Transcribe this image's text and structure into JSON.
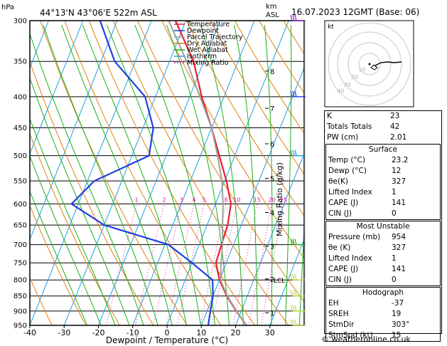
{
  "header": {
    "hpa_label": "hPa",
    "location": "44°13'N  43°06'E  522m  ASL",
    "km_label": "km",
    "asl_label": "ASL",
    "datetime": "16.07.2023  12GMT  (Base: 06)"
  },
  "legend": [
    {
      "label": "Temperature",
      "color": "#e8202a",
      "dash": ""
    },
    {
      "label": "Dewpoint",
      "color": "#2040e0",
      "dash": ""
    },
    {
      "label": "Parcel Trajectory",
      "color": "#a0a0a0",
      "dash": ""
    },
    {
      "label": "Dry Adiabat",
      "color": "#e08010",
      "dash": ""
    },
    {
      "label": "Wet Adiabat",
      "color": "#18b018",
      "dash": ""
    },
    {
      "label": "Isotherm",
      "color": "#20a0e0",
      "dash": ""
    },
    {
      "label": "Mixing Ratio",
      "color": "#e010a0",
      "dash": "2,2"
    }
  ],
  "chart_data": {
    "type": "line",
    "title": "",
    "xlabel": "Dewpoint / Temperature (°C)",
    "ylabel_right": "Mixing Ratio (g/kg)",
    "xlim": [
      -40,
      40
    ],
    "pressure_range": [
      300,
      950
    ],
    "y_scale": "log",
    "pressure_levels": [
      300,
      350,
      400,
      450,
      500,
      550,
      600,
      650,
      700,
      750,
      800,
      850,
      900,
      950
    ],
    "x_ticks": [
      -40,
      -30,
      -20,
      -10,
      0,
      10,
      20,
      30
    ],
    "km_ticks": [
      {
        "label": "1",
        "p": 906
      },
      {
        "label": "2",
        "p": 797
      },
      {
        "label": "3",
        "p": 704
      },
      {
        "label": "4",
        "p": 620
      },
      {
        "label": "5",
        "p": 545
      },
      {
        "label": "6",
        "p": 478
      },
      {
        "label": "7",
        "p": 418
      },
      {
        "label": "8",
        "p": 363
      }
    ],
    "lcl": {
      "label": "LCL",
      "p": 800
    },
    "mixing_ratio_labels": [
      "1",
      "2",
      "3",
      "4",
      "5",
      "8",
      "10",
      "15",
      "20",
      "25"
    ],
    "mixing_ratio_values": [
      1,
      2,
      3,
      4,
      5,
      8,
      10,
      15,
      20,
      25
    ],
    "mixing_label_p": 600,
    "series": [
      {
        "name": "Temperature",
        "color": "#e8202a",
        "points": [
          [
            950,
            23.2
          ],
          [
            900,
            18.5
          ],
          [
            850,
            14
          ],
          [
            800,
            10
          ],
          [
            750,
            7
          ],
          [
            700,
            6.5
          ],
          [
            650,
            6
          ],
          [
            600,
            4.5
          ],
          [
            550,
            0.5
          ],
          [
            500,
            -4.5
          ],
          [
            450,
            -10
          ],
          [
            400,
            -16.5
          ],
          [
            350,
            -23
          ],
          [
            300,
            -33
          ]
        ]
      },
      {
        "name": "Dewpoint",
        "color": "#2040e0",
        "points": [
          [
            950,
            12
          ],
          [
            900,
            11
          ],
          [
            850,
            10
          ],
          [
            800,
            8
          ],
          [
            750,
            0
          ],
          [
            700,
            -9
          ],
          [
            650,
            -30
          ],
          [
            600,
            -42
          ],
          [
            550,
            -38
          ],
          [
            500,
            -25
          ],
          [
            450,
            -27
          ],
          [
            400,
            -33
          ],
          [
            350,
            -46
          ],
          [
            300,
            -55
          ]
        ]
      },
      {
        "name": "Parcel Trajectory",
        "color": "#a0a0a0",
        "points": [
          [
            950,
            23.2
          ],
          [
            900,
            18.6
          ],
          [
            850,
            14.2
          ],
          [
            800,
            10.3
          ],
          [
            750,
            8.5
          ],
          [
            700,
            6.8
          ],
          [
            650,
            4.5
          ],
          [
            600,
            2.2
          ],
          [
            550,
            -0.8
          ],
          [
            500,
            -5
          ],
          [
            450,
            -10
          ],
          [
            400,
            -17
          ],
          [
            350,
            -25
          ],
          [
            300,
            -35
          ]
        ]
      }
    ]
  },
  "hodograph": {
    "label": "kt",
    "rings": [
      "10",
      "20",
      "30",
      "40"
    ]
  },
  "indices": [
    {
      "label": "K",
      "value": "23"
    },
    {
      "label": "Totals Totals",
      "value": "42"
    },
    {
      "label": "PW (cm)",
      "value": "2.01"
    }
  ],
  "surface": {
    "title": "Surface",
    "rows": [
      {
        "label": "Temp (°C)",
        "value": "23.2"
      },
      {
        "label": "Dewp (°C)",
        "value": "12"
      },
      {
        "label": "θe(K)",
        "value": "327"
      },
      {
        "label": "Lifted Index",
        "value": "1"
      },
      {
        "label": "CAPE (J)",
        "value": "141"
      },
      {
        "label": "CIN (J)",
        "value": "0"
      }
    ]
  },
  "most_unstable": {
    "title": "Most Unstable",
    "rows": [
      {
        "label": "Pressure (mb)",
        "value": "954"
      },
      {
        "label": "θe (K)",
        "value": "327"
      },
      {
        "label": "Lifted Index",
        "value": "1"
      },
      {
        "label": "CAPE (J)",
        "value": "141"
      },
      {
        "label": "CIN (J)",
        "value": "0"
      }
    ]
  },
  "hodograph_table": {
    "title": "Hodograph",
    "rows": [
      {
        "label": "EH",
        "value": "-37"
      },
      {
        "label": "SREH",
        "value": "19"
      },
      {
        "label": "StmDir",
        "value": "303°"
      },
      {
        "label": "StmSpd (kt)",
        "value": "15"
      }
    ]
  },
  "footer": "© weatheronline.co.uk",
  "colors": {
    "isotherm": "#20a0e0",
    "dry_adiabat": "#e08010",
    "wet_adiabat": "#18b018",
    "mixing_ratio": "#e010a0",
    "wind": [
      "#9020c0",
      "#2040e0",
      "#20a0e0",
      "#18b018",
      "#c0e040"
    ]
  }
}
